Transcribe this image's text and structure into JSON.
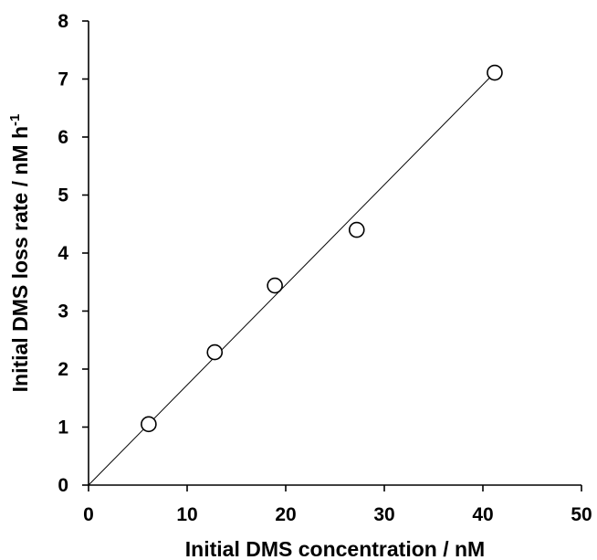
{
  "chart_data": {
    "type": "scatter",
    "xlabel": "Initial DMS concentration / nM",
    "ylabel_main": "Initial DMS loss rate / nM h",
    "ylabel_superscript": "-1",
    "xlim": [
      0,
      50
    ],
    "ylim": [
      0,
      8
    ],
    "xticks": [
      0,
      10,
      20,
      30,
      40,
      50
    ],
    "yticks": [
      0,
      1,
      2,
      3,
      4,
      5,
      6,
      7,
      8
    ],
    "grid": false,
    "legend": "none",
    "series": [
      {
        "marker": "open-circle",
        "x": [
          6.1,
          12.8,
          18.9,
          27.2,
          41.2
        ],
        "y": [
          1.05,
          2.29,
          3.44,
          4.4,
          7.11
        ]
      }
    ],
    "fit_line": {
      "x": [
        0,
        41.2
      ],
      "y": [
        0,
        7.11
      ]
    }
  }
}
